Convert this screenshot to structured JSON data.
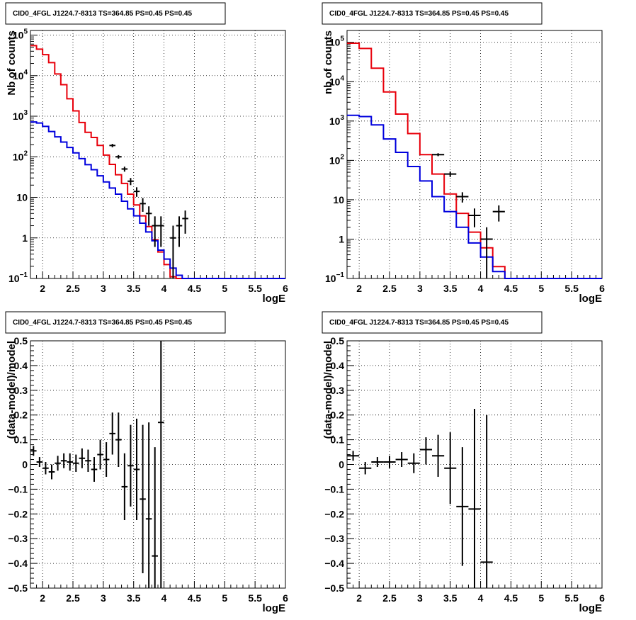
{
  "colors": {
    "data": "#000000",
    "total_model": "#e8000b",
    "component_model": "#0000dd",
    "grid": "#000000"
  },
  "chart_data": [
    {
      "type": "line",
      "panel": "top-left",
      "title": "CID0_4FGL J1224.7-8313 TS=364.85 PS=0.45 PS=0.45",
      "xlabel": "logE",
      "ylabel": "Nb of counts",
      "xlim": [
        1.8,
        6.0
      ],
      "ylim": [
        0.1,
        130000
      ],
      "yscale": "log",
      "grid": true,
      "xticks": [
        "2",
        "2.5",
        "3",
        "3.5",
        "4",
        "4.5",
        "5",
        "5.5",
        "6"
      ],
      "yticks": [
        {
          "v": 0.1,
          "label": "10",
          "sup": "−1"
        },
        {
          "v": 1,
          "label": "1",
          "sup": ""
        },
        {
          "v": 10,
          "label": "10",
          "sup": ""
        },
        {
          "v": 100,
          "label": "10",
          "sup": "2"
        },
        {
          "v": 1000,
          "label": "10",
          "sup": "3"
        },
        {
          "v": 10000,
          "label": "10",
          "sup": "4"
        },
        {
          "v": 100000,
          "label": "10",
          "sup": "5"
        }
      ],
      "bin_width": 0.1,
      "series": [
        {
          "role": "total_model",
          "x": [
            1.8,
            1.9,
            2.0,
            2.1,
            2.2,
            2.3,
            2.4,
            2.5,
            2.6,
            2.7,
            2.8,
            2.9,
            3.0,
            3.1,
            3.2,
            3.3,
            3.4,
            3.5,
            3.6,
            3.7,
            3.8,
            3.9,
            4.0,
            4.1,
            4.2,
            4.3,
            4.4,
            4.5,
            4.6,
            4.7,
            4.8,
            4.9,
            5.0,
            5.1,
            5.2,
            5.3,
            5.4,
            5.5,
            5.6,
            5.7,
            5.8,
            5.9
          ],
          "values": [
            55000,
            45000,
            33000,
            21000,
            11000,
            6000,
            2700,
            1350,
            700,
            400,
            300,
            190,
            110,
            65,
            36,
            22,
            12,
            6.5,
            3.5,
            1.9,
            0.9,
            0.45,
            0.22,
            0.11,
            0.1,
            0.1,
            0.1,
            0.1,
            0.1,
            0.1,
            0.1,
            0.1,
            0.1,
            0.1,
            0.1,
            0.1,
            0.1,
            0.1,
            0.1,
            0.1,
            0.1,
            0.1
          ]
        },
        {
          "role": "component_model",
          "x": [
            1.8,
            1.9,
            2.0,
            2.1,
            2.2,
            2.3,
            2.4,
            2.5,
            2.6,
            2.7,
            2.8,
            2.9,
            3.0,
            3.1,
            3.2,
            3.3,
            3.4,
            3.5,
            3.6,
            3.7,
            3.8,
            3.9,
            4.0,
            4.1,
            4.2,
            4.3,
            4.4,
            4.5,
            4.6,
            4.7,
            4.8,
            4.9,
            5.0,
            5.1,
            5.2,
            5.3,
            5.4,
            5.5,
            5.6,
            5.7,
            5.8,
            5.9
          ],
          "values": [
            720,
            680,
            560,
            420,
            310,
            230,
            170,
            125,
            90,
            64,
            48,
            34,
            24,
            17,
            12,
            8,
            5.2,
            3.5,
            2.3,
            1.4,
            0.85,
            0.5,
            0.3,
            0.18,
            0.12,
            0.1,
            0.1,
            0.1,
            0.1,
            0.1,
            0.1,
            0.1,
            0.1,
            0.1,
            0.1,
            0.1,
            0.1,
            0.1,
            0.1,
            0.1,
            0.1,
            0.1
          ]
        },
        {
          "role": "data",
          "points": [
            {
              "x": 3.15,
              "y": 190,
              "lo": 172,
              "hi": 208
            },
            {
              "x": 3.25,
              "y": 100,
              "lo": 90,
              "hi": 110
            },
            {
              "x": 3.35,
              "y": 50,
              "lo": 43,
              "hi": 57
            },
            {
              "x": 3.45,
              "y": 25,
              "lo": 20,
              "hi": 30
            },
            {
              "x": 3.55,
              "y": 14,
              "lo": 10.3,
              "hi": 17.7
            },
            {
              "x": 3.65,
              "y": 7,
              "lo": 4.4,
              "hi": 9.6
            },
            {
              "x": 3.75,
              "y": 4,
              "lo": 2,
              "hi": 6
            },
            {
              "x": 3.85,
              "y": 2,
              "lo": 0.6,
              "hi": 3.4
            },
            {
              "x": 3.95,
              "y": 2,
              "lo": 0.6,
              "hi": 3.4
            },
            {
              "x": 4.15,
              "y": 1,
              "lo": 0.1,
              "hi": 2
            },
            {
              "x": 4.25,
              "y": 2,
              "lo": 0.6,
              "hi": 3.4
            },
            {
              "x": 4.35,
              "y": 3,
              "lo": 1.27,
              "hi": 4.73
            }
          ]
        }
      ]
    },
    {
      "type": "line",
      "panel": "top-right",
      "title": "CID0_4FGL J1224.7-8313 TS=364.85 PS=0.45 PS=0.45",
      "xlabel": "logE",
      "ylabel": "nb of counts",
      "xlim": [
        1.8,
        6.0
      ],
      "ylim": [
        0.1,
        200000
      ],
      "yscale": "log",
      "grid": true,
      "xticks": [
        "2",
        "2.5",
        "3",
        "3.5",
        "4",
        "4.5",
        "5",
        "5.5",
        "6"
      ],
      "yticks": [
        {
          "v": 0.1,
          "label": "10",
          "sup": "−1"
        },
        {
          "v": 1,
          "label": "1",
          "sup": ""
        },
        {
          "v": 10,
          "label": "10",
          "sup": ""
        },
        {
          "v": 100,
          "label": "10",
          "sup": "2"
        },
        {
          "v": 1000,
          "label": "10",
          "sup": "3"
        },
        {
          "v": 10000,
          "label": "10",
          "sup": "4"
        },
        {
          "v": 100000,
          "label": "10",
          "sup": "5"
        }
      ],
      "bin_width": 0.2,
      "series": [
        {
          "role": "total_model",
          "x": [
            1.8,
            2.0,
            2.2,
            2.4,
            2.6,
            2.8,
            3.0,
            3.2,
            3.4,
            3.6,
            3.8,
            4.0,
            4.2,
            4.4,
            4.6,
            4.8,
            5.0,
            5.2,
            5.4,
            5.6,
            5.8
          ],
          "values": [
            95000,
            70000,
            22000,
            5500,
            1500,
            480,
            140,
            45,
            14,
            4.5,
            1.5,
            0.6,
            0.2,
            0.1,
            0.1,
            0.1,
            0.1,
            0.1,
            0.1,
            0.1,
            0.1
          ]
        },
        {
          "role": "component_model",
          "x": [
            1.8,
            2.0,
            2.2,
            2.4,
            2.6,
            2.8,
            3.0,
            3.2,
            3.4,
            3.6,
            3.8,
            4.0,
            4.2,
            4.4,
            4.6,
            4.8,
            5.0,
            5.2,
            5.4,
            5.6,
            5.8
          ],
          "values": [
            1400,
            1300,
            800,
            350,
            160,
            70,
            30,
            12,
            5,
            2,
            0.8,
            0.35,
            0.15,
            0.1,
            0.1,
            0.1,
            0.1,
            0.1,
            0.1,
            0.1,
            0.1
          ]
        },
        {
          "role": "data",
          "points": [
            {
              "x": 3.3,
              "y": 140,
              "lo": 128,
              "hi": 152
            },
            {
              "x": 3.5,
              "y": 45,
              "lo": 38,
              "hi": 52
            },
            {
              "x": 3.7,
              "y": 12,
              "lo": 8.5,
              "hi": 15.5
            },
            {
              "x": 3.9,
              "y": 4,
              "lo": 2,
              "hi": 6
            },
            {
              "x": 4.1,
              "y": 1,
              "lo": 0.1,
              "hi": 2
            },
            {
              "x": 4.3,
              "y": 5,
              "lo": 2.8,
              "hi": 7.2
            }
          ]
        }
      ]
    },
    {
      "type": "scatter",
      "panel": "bottom-left",
      "title": "CID0_4FGL J1224.7-8313 TS=364.85 PS=0.45 PS=0.45",
      "xlabel": "logE",
      "ylabel": "(data-model)/model",
      "xlim": [
        1.8,
        6.0
      ],
      "ylim": [
        -0.5,
        0.5
      ],
      "yscale": "linear",
      "grid": true,
      "xticks": [
        "2",
        "2.5",
        "3",
        "3.5",
        "4",
        "4.5",
        "5",
        "5.5",
        "6"
      ],
      "yticks": [
        {
          "v": -0.5,
          "label": "−0.5"
        },
        {
          "v": -0.4,
          "label": "−0.4"
        },
        {
          "v": -0.3,
          "label": "−0.3"
        },
        {
          "v": -0.2,
          "label": "−0.2"
        },
        {
          "v": -0.1,
          "label": "−0.1"
        },
        {
          "v": 0,
          "label": "0"
        },
        {
          "v": 0.1,
          "label": "0.1"
        },
        {
          "v": 0.2,
          "label": "0.2"
        },
        {
          "v": 0.3,
          "label": "0.3"
        },
        {
          "v": 0.4,
          "label": "0.4"
        },
        {
          "v": 0.5,
          "label": "0.5"
        }
      ],
      "bin_width": 0.1,
      "points": [
        {
          "x": 1.85,
          "y": 0.055,
          "lo": 0.035,
          "hi": 0.075
        },
        {
          "x": 1.95,
          "y": 0.01,
          "lo": -0.01,
          "hi": 0.03
        },
        {
          "x": 2.05,
          "y": -0.015,
          "lo": -0.04,
          "hi": 0.01
        },
        {
          "x": 2.15,
          "y": -0.03,
          "lo": -0.06,
          "hi": 0.0
        },
        {
          "x": 2.25,
          "y": 0.005,
          "lo": -0.025,
          "hi": 0.035
        },
        {
          "x": 2.35,
          "y": 0.015,
          "lo": -0.015,
          "hi": 0.045
        },
        {
          "x": 2.45,
          "y": 0.01,
          "lo": -0.025,
          "hi": 0.045
        },
        {
          "x": 2.55,
          "y": 0.005,
          "lo": -0.03,
          "hi": 0.04
        },
        {
          "x": 2.65,
          "y": 0.025,
          "lo": -0.015,
          "hi": 0.065
        },
        {
          "x": 2.75,
          "y": 0.015,
          "lo": -0.03,
          "hi": 0.06
        },
        {
          "x": 2.85,
          "y": -0.02,
          "lo": -0.07,
          "hi": 0.03
        },
        {
          "x": 2.95,
          "y": 0.04,
          "lo": -0.02,
          "hi": 0.1
        },
        {
          "x": 3.05,
          "y": 0.02,
          "lo": -0.05,
          "hi": 0.09
        },
        {
          "x": 3.15,
          "y": 0.125,
          "lo": 0.04,
          "hi": 0.21
        },
        {
          "x": 3.25,
          "y": 0.1,
          "lo": -0.01,
          "hi": 0.21
        },
        {
          "x": 3.35,
          "y": -0.09,
          "lo": -0.225,
          "hi": 0.045
        },
        {
          "x": 3.45,
          "y": -0.005,
          "lo": -0.17,
          "hi": 0.16
        },
        {
          "x": 3.55,
          "y": -0.02,
          "lo": -0.225,
          "hi": 0.185
        },
        {
          "x": 3.65,
          "y": -0.14,
          "lo": -0.44,
          "hi": 0.16
        },
        {
          "x": 3.75,
          "y": -0.22,
          "lo": -0.5,
          "hi": 0.17
        },
        {
          "x": 3.85,
          "y": -0.37,
          "lo": -0.5,
          "hi": 0.07
        },
        {
          "x": 3.95,
          "y": 0.17,
          "lo": -0.5,
          "hi": 0.5
        }
      ]
    },
    {
      "type": "scatter",
      "panel": "bottom-right",
      "title": "CID0_4FGL J1224.7-8313 TS=364.85 PS=0.45 PS=0.45",
      "xlabel": "logE",
      "ylabel": "(data-model)/model",
      "xlim": [
        1.8,
        6.0
      ],
      "ylim": [
        -0.5,
        0.5
      ],
      "yscale": "linear",
      "grid": true,
      "xticks": [
        "2",
        "2.5",
        "3",
        "3.5",
        "4",
        "4.5",
        "5",
        "5.5",
        "6"
      ],
      "yticks": [
        {
          "v": -0.5,
          "label": "−0.5"
        },
        {
          "v": -0.4,
          "label": "−0.4"
        },
        {
          "v": -0.3,
          "label": "−0.3"
        },
        {
          "v": -0.2,
          "label": "−0.2"
        },
        {
          "v": -0.1,
          "label": "−0.1"
        },
        {
          "v": 0,
          "label": "0"
        },
        {
          "v": 0.1,
          "label": "0.1"
        },
        {
          "v": 0.2,
          "label": "0.2"
        },
        {
          "v": 0.3,
          "label": "0.3"
        },
        {
          "v": 0.4,
          "label": "0.4"
        },
        {
          "v": 0.5,
          "label": "0.5"
        }
      ],
      "bin_width": 0.2,
      "points": [
        {
          "x": 1.9,
          "y": 0.035,
          "lo": 0.015,
          "hi": 0.055
        },
        {
          "x": 2.1,
          "y": -0.015,
          "lo": -0.04,
          "hi": 0.01
        },
        {
          "x": 2.3,
          "y": 0.01,
          "lo": -0.01,
          "hi": 0.03
        },
        {
          "x": 2.5,
          "y": 0.01,
          "lo": -0.015,
          "hi": 0.035
        },
        {
          "x": 2.7,
          "y": 0.02,
          "lo": -0.01,
          "hi": 0.05
        },
        {
          "x": 2.9,
          "y": 0.005,
          "lo": -0.035,
          "hi": 0.045
        },
        {
          "x": 3.1,
          "y": 0.06,
          "lo": 0.0,
          "hi": 0.11
        },
        {
          "x": 3.3,
          "y": 0.035,
          "lo": -0.05,
          "hi": 0.12
        },
        {
          "x": 3.5,
          "y": -0.015,
          "lo": -0.16,
          "hi": 0.13
        },
        {
          "x": 3.7,
          "y": -0.17,
          "lo": -0.41,
          "hi": 0.07
        },
        {
          "x": 3.9,
          "y": -0.18,
          "lo": -0.5,
          "hi": 0.225
        },
        {
          "x": 4.1,
          "y": -0.395,
          "lo": -0.5,
          "hi": 0.2
        }
      ]
    }
  ]
}
